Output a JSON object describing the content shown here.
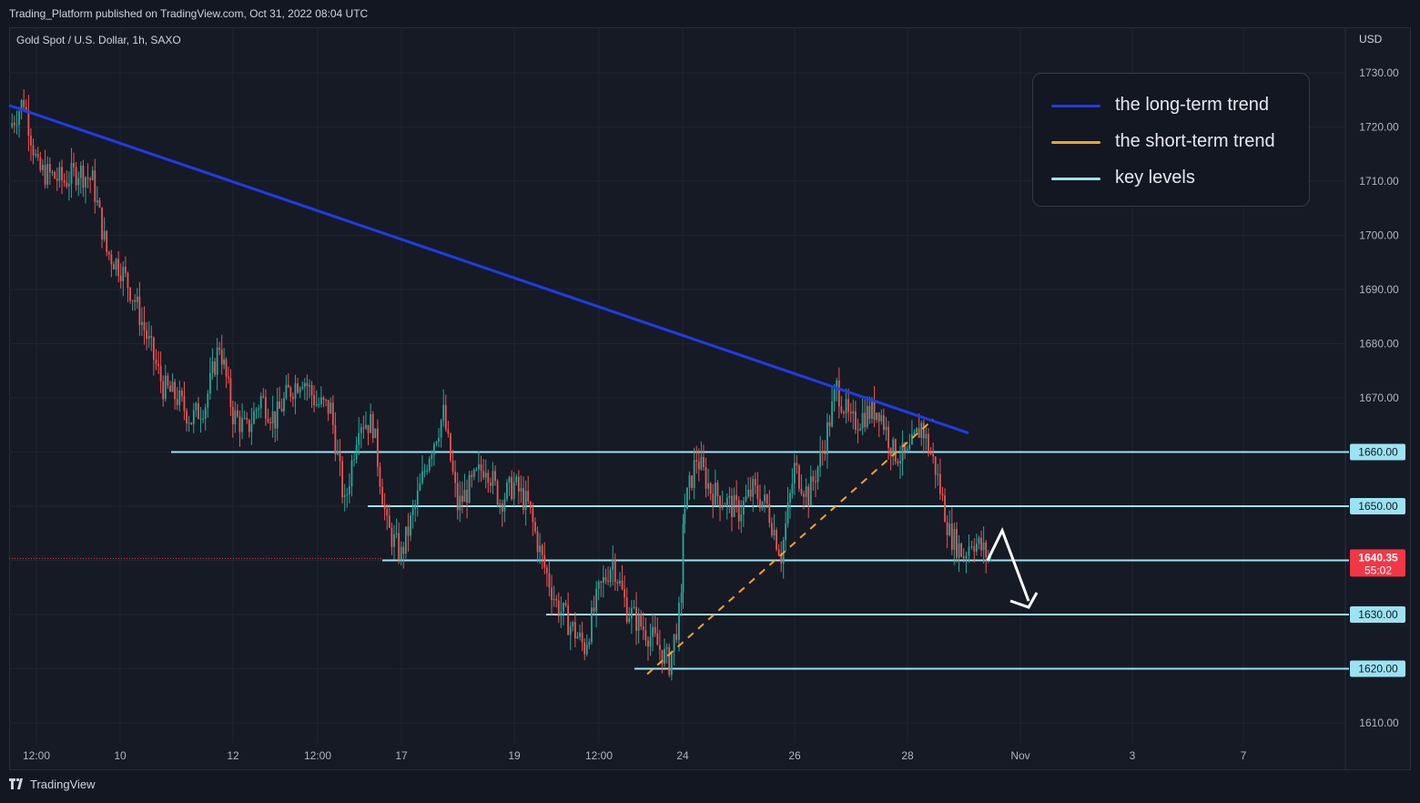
{
  "header": {
    "published": "Trading_Platform published on TradingView.com, Oct 31, 2022 08:04 UTC"
  },
  "chart": {
    "symbol": "Gold Spot / U.S. Dollar, 1h, SAXO",
    "currency": "USD"
  },
  "legend": [
    {
      "label": "the long-term trend",
      "color": "#1e3de6"
    },
    {
      "label": "the short-term trend",
      "color": "#f7a224"
    },
    {
      "label": "key levels",
      "color": "#9be3f2"
    }
  ],
  "footer": {
    "brand": "TradingView"
  },
  "chart_data": {
    "type": "candlestick",
    "y_range": [
      1605,
      1735
    ],
    "y_ticks": [
      1610,
      1620,
      1630,
      1640,
      1650,
      1660,
      1670,
      1680,
      1690,
      1700,
      1710,
      1720,
      1730
    ],
    "x_tick_labels": [
      "12:00",
      "10",
      "12",
      "12:00",
      "17",
      "19",
      "12:00",
      "24",
      "26",
      "28",
      "Nov",
      "3",
      "7"
    ],
    "price": {
      "last": "1640.35",
      "countdown": "55:02",
      "color": "#f23645"
    },
    "key_levels": [
      {
        "value": 1660,
        "label": "1660.00",
        "from": "Oct 7 22:00"
      },
      {
        "value": 1650,
        "label": "1650.00",
        "from": "Oct 14 16:00"
      },
      {
        "value": 1640,
        "label": "1640.00",
        "from": "Oct 14 20:00"
      },
      {
        "value": 1630,
        "label": "1630.00",
        "from": "Oct 19 16:00"
      },
      {
        "value": 1620,
        "label": "1620.00",
        "from": "Oct 21 16:00"
      }
    ],
    "long_term_trend": {
      "from": {
        "time": "Oct 6 00:00",
        "price": 1724
      },
      "to": {
        "time": "Oct 28 12:00",
        "price": 1663.5
      }
    },
    "short_term_trend": {
      "from": {
        "time": "Oct 21 18:00",
        "price": 1619
      },
      "to": {
        "time": "Oct 28 06:00",
        "price": 1666
      }
    },
    "projection": {
      "direction": "down",
      "points": [
        {
          "time": "Oct 30 20:00",
          "price": 1640
        },
        {
          "time": "Oct 31 04:00",
          "price": 1645.5
        },
        {
          "time": "Oct 31 12:00",
          "price": 1632
        }
      ]
    },
    "price_path": [
      {
        "t": "Oct 6 00:00",
        "p": 1720
      },
      {
        "t": "Oct 6 06:00",
        "p": 1725
      },
      {
        "t": "Oct 6 12:00",
        "p": 1712
      },
      {
        "t": "Oct 7 00:00",
        "p": 1710
      },
      {
        "t": "Oct 7 06:00",
        "p": 1712
      },
      {
        "t": "Oct 7 12:00",
        "p": 1710
      },
      {
        "t": "Oct 7 18:00",
        "p": 1697
      },
      {
        "t": "Oct 10 00:00",
        "p": 1694
      },
      {
        "t": "Oct 10 06:00",
        "p": 1688
      },
      {
        "t": "Oct 10 12:00",
        "p": 1680
      },
      {
        "t": "Oct 10 18:00",
        "p": 1672
      },
      {
        "t": "Oct 11 00:00",
        "p": 1670
      },
      {
        "t": "Oct 11 06:00",
        "p": 1666
      },
      {
        "t": "Oct 11 12:00",
        "p": 1669
      },
      {
        "t": "Oct 11 18:00",
        "p": 1680
      },
      {
        "t": "Oct 12 00:00",
        "p": 1667
      },
      {
        "t": "Oct 12 06:00",
        "p": 1664
      },
      {
        "t": "Oct 12 12:00",
        "p": 1670
      },
      {
        "t": "Oct 12 18:00",
        "p": 1666
      },
      {
        "t": "Oct 13 00:00",
        "p": 1671
      },
      {
        "t": "Oct 13 06:00",
        "p": 1674
      },
      {
        "t": "Oct 13 12:00",
        "p": 1669
      },
      {
        "t": "Oct 13 18:00",
        "p": 1668
      },
      {
        "t": "Oct 14 00:00",
        "p": 1650
      },
      {
        "t": "Oct 14 06:00",
        "p": 1666
      },
      {
        "t": "Oct 14 12:00",
        "p": 1665
      },
      {
        "t": "Oct 14 18:00",
        "p": 1646
      },
      {
        "t": "Oct 17 00:00",
        "p": 1641
      },
      {
        "t": "Oct 17 06:00",
        "p": 1650
      },
      {
        "t": "Oct 17 12:00",
        "p": 1660
      },
      {
        "t": "Oct 17 18:00",
        "p": 1667
      },
      {
        "t": "Oct 18 00:00",
        "p": 1650
      },
      {
        "t": "Oct 18 06:00",
        "p": 1654
      },
      {
        "t": "Oct 18 12:00",
        "p": 1658
      },
      {
        "t": "Oct 18 18:00",
        "p": 1651
      },
      {
        "t": "Oct 19 00:00",
        "p": 1654
      },
      {
        "t": "Oct 19 06:00",
        "p": 1650
      },
      {
        "t": "Oct 19 12:00",
        "p": 1640
      },
      {
        "t": "Oct 19 18:00",
        "p": 1632
      },
      {
        "t": "Oct 20 00:00",
        "p": 1628
      },
      {
        "t": "Oct 20 06:00",
        "p": 1624
      },
      {
        "t": "Oct 20 12:00",
        "p": 1634
      },
      {
        "t": "Oct 20 18:00",
        "p": 1640
      },
      {
        "t": "Oct 21 00:00",
        "p": 1631
      },
      {
        "t": "Oct 21 06:00",
        "p": 1628
      },
      {
        "t": "Oct 21 12:00",
        "p": 1625
      },
      {
        "t": "Oct 21 18:00",
        "p": 1621
      },
      {
        "t": "Oct 22 00:00",
        "p": 1632
      },
      {
        "t": "Oct 24 00:00",
        "p": 1648
      },
      {
        "t": "Oct 24 06:00",
        "p": 1659
      },
      {
        "t": "Oct 24 12:00",
        "p": 1653
      },
      {
        "t": "Oct 24 18:00",
        "p": 1651
      },
      {
        "t": "Oct 25 00:00",
        "p": 1649
      },
      {
        "t": "Oct 25 06:00",
        "p": 1653
      },
      {
        "t": "Oct 25 12:00",
        "p": 1650
      },
      {
        "t": "Oct 25 18:00",
        "p": 1641
      },
      {
        "t": "Oct 26 00:00",
        "p": 1657
      },
      {
        "t": "Oct 26 06:00",
        "p": 1652
      },
      {
        "t": "Oct 26 12:00",
        "p": 1660
      },
      {
        "t": "Oct 26 18:00",
        "p": 1672
      },
      {
        "t": "Oct 27 00:00",
        "p": 1665
      },
      {
        "t": "Oct 27 06:00",
        "p": 1667
      },
      {
        "t": "Oct 27 12:00",
        "p": 1668
      },
      {
        "t": "Oct 27 18:00",
        "p": 1660
      },
      {
        "t": "Oct 28 00:00",
        "p": 1659
      },
      {
        "t": "Oct 28 06:00",
        "p": 1665
      },
      {
        "t": "Oct 28 12:00",
        "p": 1657
      },
      {
        "t": "Oct 28 18:00",
        "p": 1645
      },
      {
        "t": "Oct 29 00:00",
        "p": 1641
      },
      {
        "t": "Oct 30 12:00",
        "p": 1644
      },
      {
        "t": "Oct 30 20:00",
        "p": 1640.35
      }
    ]
  }
}
